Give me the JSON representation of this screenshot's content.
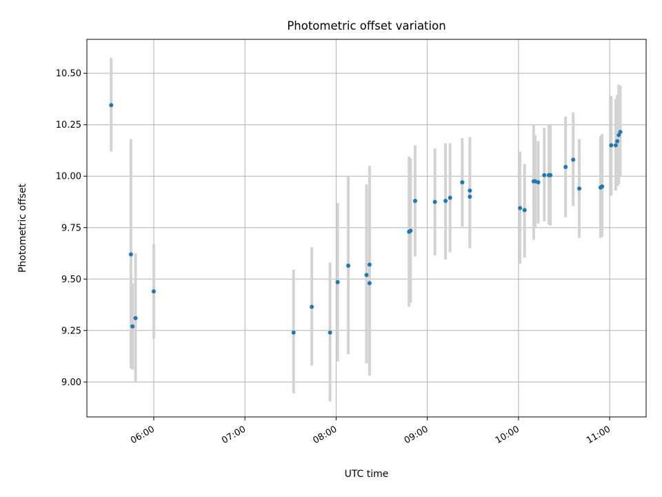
{
  "chart_data": {
    "type": "scatter",
    "title": "Photometric offset variation",
    "xlabel": "UTC time",
    "ylabel": "Photometric offset",
    "xlim": [
      "05:16",
      "11:24"
    ],
    "ylim": [
      8.83,
      10.665
    ],
    "grid": true,
    "xticks": [
      "06:00",
      "07:00",
      "08:00",
      "09:00",
      "10:00",
      "11:00"
    ],
    "yticks": [
      9.0,
      9.25,
      9.5,
      9.75,
      10.0,
      10.25,
      10.5
    ],
    "ytick_labels": [
      "9.00",
      "9.25",
      "9.50",
      "9.75",
      "10.00",
      "10.25",
      "10.50"
    ],
    "colors": {
      "point": "#1f77b4",
      "errorbar": "#d3d3d3",
      "grid": "#b0b0b0"
    },
    "series": [
      {
        "points": [
          {
            "t": "05:32",
            "y": 10.345,
            "lo": 10.12,
            "hi": 10.575
          },
          {
            "t": "05:45",
            "y": 9.62,
            "lo": 9.065,
            "hi": 10.18
          },
          {
            "t": "05:46",
            "y": 9.27,
            "lo": 9.06,
            "hi": 9.48
          },
          {
            "t": "05:48",
            "y": 9.31,
            "lo": 9.0,
            "hi": 9.625
          },
          {
            "t": "06:00",
            "y": 9.44,
            "lo": 9.21,
            "hi": 9.67
          },
          {
            "t": "07:32",
            "y": 9.24,
            "lo": 8.945,
            "hi": 9.545
          },
          {
            "t": "07:44",
            "y": 9.365,
            "lo": 9.08,
            "hi": 9.655
          },
          {
            "t": "07:56",
            "y": 9.24,
            "lo": 8.905,
            "hi": 9.58
          },
          {
            "t": "08:01",
            "y": 9.485,
            "lo": 9.1,
            "hi": 9.87
          },
          {
            "t": "08:08",
            "y": 9.565,
            "lo": 9.135,
            "hi": 10.0
          },
          {
            "t": "08:20",
            "y": 9.52,
            "lo": 9.09,
            "hi": 9.96
          },
          {
            "t": "08:22",
            "y": 9.57,
            "lo": 9.095,
            "hi": 10.05
          },
          {
            "t": "08:22",
            "y": 9.48,
            "lo": 9.03,
            "hi": 9.93
          },
          {
            "t": "08:48",
            "y": 9.73,
            "lo": 9.365,
            "hi": 10.095
          },
          {
            "t": "08:49",
            "y": 9.735,
            "lo": 9.385,
            "hi": 10.085
          },
          {
            "t": "08:52",
            "y": 9.88,
            "lo": 9.61,
            "hi": 10.15
          },
          {
            "t": "09:05",
            "y": 9.875,
            "lo": 9.615,
            "hi": 10.135
          },
          {
            "t": "09:12",
            "y": 9.88,
            "lo": 9.595,
            "hi": 10.16
          },
          {
            "t": "09:15",
            "y": 9.895,
            "lo": 9.63,
            "hi": 10.16
          },
          {
            "t": "09:23",
            "y": 9.97,
            "lo": 9.755,
            "hi": 10.185
          },
          {
            "t": "09:28",
            "y": 9.93,
            "lo": 9.67,
            "hi": 10.19
          },
          {
            "t": "09:28",
            "y": 9.9,
            "lo": 9.65,
            "hi": 10.155
          },
          {
            "t": "10:01",
            "y": 9.845,
            "lo": 9.575,
            "hi": 10.12
          },
          {
            "t": "10:04",
            "y": 9.835,
            "lo": 9.605,
            "hi": 10.06
          },
          {
            "t": "10:10",
            "y": 9.975,
            "lo": 9.69,
            "hi": 10.25
          },
          {
            "t": "10:11",
            "y": 9.975,
            "lo": 9.75,
            "hi": 10.2
          },
          {
            "t": "10:13",
            "y": 9.97,
            "lo": 9.77,
            "hi": 10.17
          },
          {
            "t": "10:17",
            "y": 10.005,
            "lo": 9.78,
            "hi": 10.235
          },
          {
            "t": "10:20",
            "y": 10.005,
            "lo": 9.765,
            "hi": 10.25
          },
          {
            "t": "10:21",
            "y": 10.005,
            "lo": 9.76,
            "hi": 10.25
          },
          {
            "t": "10:31",
            "y": 10.045,
            "lo": 9.8,
            "hi": 10.29
          },
          {
            "t": "10:36",
            "y": 10.08,
            "lo": 9.855,
            "hi": 10.31
          },
          {
            "t": "10:40",
            "y": 9.94,
            "lo": 9.7,
            "hi": 10.18
          },
          {
            "t": "10:54",
            "y": 9.945,
            "lo": 9.7,
            "hi": 10.195
          },
          {
            "t": "10:55",
            "y": 9.95,
            "lo": 9.705,
            "hi": 10.205
          },
          {
            "t": "11:01",
            "y": 10.15,
            "lo": 9.905,
            "hi": 10.39
          },
          {
            "t": "11:04",
            "y": 10.15,
            "lo": 9.93,
            "hi": 10.375
          },
          {
            "t": "11:05",
            "y": 10.17,
            "lo": 9.95,
            "hi": 10.395
          },
          {
            "t": "11:06",
            "y": 10.2,
            "lo": 9.96,
            "hi": 10.445
          },
          {
            "t": "11:07",
            "y": 10.215,
            "lo": 10.0,
            "hi": 10.44
          }
        ]
      }
    ]
  }
}
